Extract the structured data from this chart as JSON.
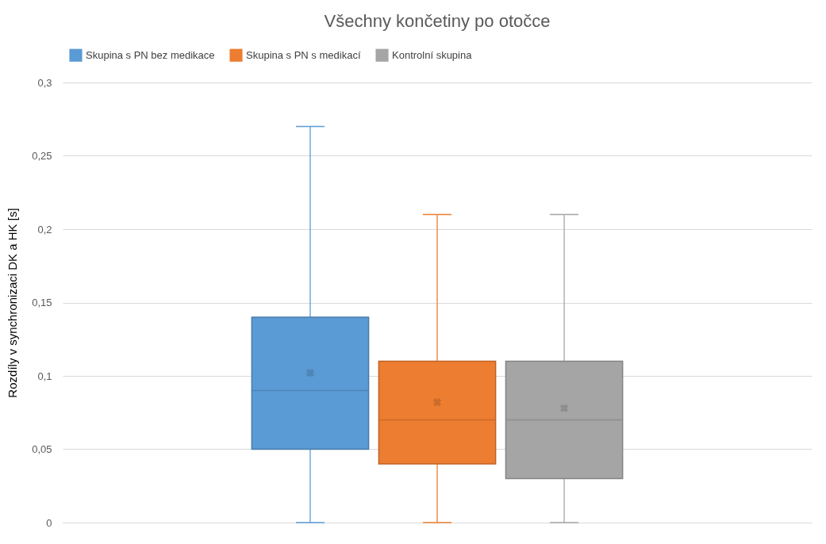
{
  "chart_data": {
    "type": "box",
    "title": "Všechny končetiny po otočce",
    "ylabel": "Rozdíly v synchronizaci DK a HK [s]",
    "categories": [
      null
    ],
    "series": [
      {
        "name": "Skupina s PN bez medikace",
        "color": "#5b9bd5",
        "boxes": [
          {
            "low": 0,
            "q1": 0.05,
            "median": 0.09,
            "q3": 0.14,
            "high": 0.27,
            "mean": 0.102
          }
        ]
      },
      {
        "name": "Skupina s PN s medikací",
        "color": "#ed7d31",
        "boxes": [
          {
            "low": 0,
            "q1": 0.04,
            "median": 0.07,
            "q3": 0.11,
            "high": 0.21,
            "mean": 0.082
          }
        ]
      },
      {
        "name": "Kontrolní skupina",
        "color": "#a5a5a5",
        "boxes": [
          {
            "low": 0,
            "q1": 0.03,
            "median": 0.07,
            "q3": 0.11,
            "high": 0.21,
            "mean": 0.078
          }
        ]
      }
    ],
    "ylim": [
      0,
      0.3
    ],
    "yticks": [
      0,
      {
        "value": 0.05,
        "label": "0,05"
      },
      {
        "value": 0.1,
        "label": "0,1"
      },
      {
        "value": 0.15,
        "label": "0,15"
      },
      {
        "value": 0.2,
        "label": "0,2"
      },
      {
        "value": 0.25,
        "label": "0,25"
      },
      {
        "value": 0.3,
        "label": "0,3"
      }
    ],
    "grid": "y",
    "legend": "top",
    "tick_labels": "y"
  }
}
